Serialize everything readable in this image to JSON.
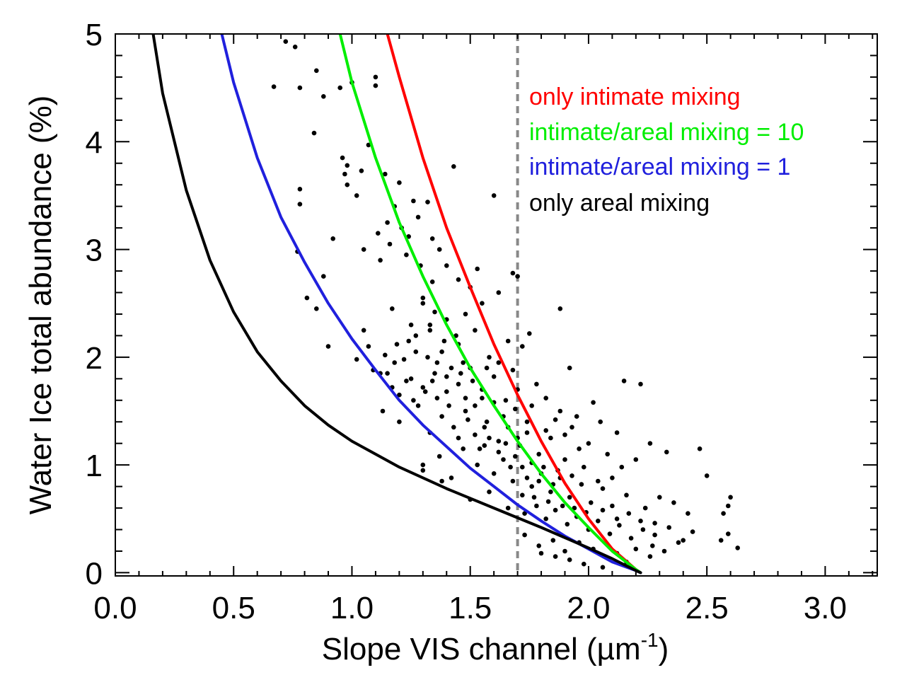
{
  "chart_data": {
    "type": "scatter",
    "title": "",
    "xlabel": "Slope VIS channel (",
    "xlabel_unit": "µm",
    "xlabel_exp": "-1",
    "xlabel_close": ")",
    "ylabel": "Water Ice total abundance (%)",
    "xlim": [
      0.0,
      3.22
    ],
    "ylim": [
      -0.03,
      5.0
    ],
    "x_ticks": [
      {
        "value": 0.0,
        "label": "0.0"
      },
      {
        "value": 0.5,
        "label": "0.5"
      },
      {
        "value": 1.0,
        "label": "1.0"
      },
      {
        "value": 1.5,
        "label": "1.5"
      },
      {
        "value": 2.0,
        "label": "2.0"
      },
      {
        "value": 2.5,
        "label": "2.5"
      },
      {
        "value": 3.0,
        "label": "3.0"
      }
    ],
    "y_ticks": [
      {
        "value": 0,
        "label": "0"
      },
      {
        "value": 1,
        "label": "1"
      },
      {
        "value": 2,
        "label": "2"
      },
      {
        "value": 3,
        "label": "3"
      },
      {
        "value": 4,
        "label": "4"
      },
      {
        "value": 5,
        "label": "5"
      }
    ],
    "reference_line": {
      "x": 1.7,
      "style": "dashed",
      "color": "#888888"
    },
    "legend_position": "top-right",
    "series": [
      {
        "name": "only intimate mixing",
        "type": "line",
        "color": "#ff0000",
        "x": [
          1.15,
          1.2,
          1.3,
          1.4,
          1.5,
          1.6,
          1.7,
          1.8,
          1.9,
          2.0,
          2.1,
          2.2,
          2.22
        ],
        "y": [
          5.0,
          4.6,
          3.85,
          3.2,
          2.65,
          2.12,
          1.65,
          1.22,
          0.83,
          0.5,
          0.22,
          0.03,
          0.0
        ]
      },
      {
        "name": "intimate/areal mixing = 10",
        "type": "line",
        "color": "#00ee00",
        "x": [
          0.95,
          1.0,
          1.1,
          1.2,
          1.3,
          1.4,
          1.5,
          1.6,
          1.7,
          1.8,
          1.9,
          2.0,
          2.1,
          2.2,
          2.22
        ],
        "y": [
          5.0,
          4.55,
          3.85,
          3.25,
          2.75,
          2.3,
          1.9,
          1.55,
          1.22,
          0.92,
          0.65,
          0.42,
          0.2,
          0.03,
          0.0
        ]
      },
      {
        "name": "intimate/areal mixing = 1",
        "type": "line",
        "color": "#2020dd",
        "x": [
          0.45,
          0.5,
          0.6,
          0.7,
          0.8,
          0.9,
          1.0,
          1.1,
          1.2,
          1.3,
          1.4,
          1.5,
          1.6,
          1.7,
          1.8,
          1.9,
          2.0,
          2.1,
          2.2,
          2.22
        ],
        "y": [
          5.0,
          4.55,
          3.85,
          3.3,
          2.88,
          2.5,
          2.17,
          1.88,
          1.6,
          1.37,
          1.17,
          0.97,
          0.8,
          0.63,
          0.48,
          0.34,
          0.22,
          0.1,
          0.02,
          0.0
        ]
      },
      {
        "name": "only areal mixing",
        "type": "line",
        "color": "#000000",
        "x": [
          0.16,
          0.2,
          0.3,
          0.4,
          0.5,
          0.6,
          0.7,
          0.8,
          0.9,
          1.0,
          1.2,
          1.4,
          1.6,
          1.8,
          2.0,
          2.1,
          2.2,
          2.22
        ],
        "y": [
          5.0,
          4.45,
          3.55,
          2.9,
          2.42,
          2.05,
          1.78,
          1.55,
          1.37,
          1.22,
          0.98,
          0.78,
          0.6,
          0.42,
          0.23,
          0.13,
          0.02,
          0.0
        ]
      }
    ],
    "scatter_points": [
      [
        0.72,
        4.93
      ],
      [
        0.76,
        4.88
      ],
      [
        0.67,
        4.51
      ],
      [
        0.78,
        4.5
      ],
      [
        0.85,
        4.66
      ],
      [
        0.88,
        4.42
      ],
      [
        0.84,
        4.08
      ],
      [
        0.95,
        4.5
      ],
      [
        1.1,
        4.6
      ],
      [
        1.1,
        4.52
      ],
      [
        1.0,
        4.55
      ],
      [
        0.78,
        3.56
      ],
      [
        0.78,
        3.42
      ],
      [
        0.96,
        3.85
      ],
      [
        0.97,
        3.7
      ],
      [
        0.98,
        3.78
      ],
      [
        1.04,
        3.73
      ],
      [
        1.07,
        3.97
      ],
      [
        0.98,
        3.6
      ],
      [
        1.02,
        3.5
      ],
      [
        1.14,
        3.7
      ],
      [
        1.2,
        3.62
      ],
      [
        1.43,
        3.77
      ],
      [
        1.6,
        3.5
      ],
      [
        1.32,
        3.44
      ],
      [
        1.26,
        3.45
      ],
      [
        0.77,
        2.98
      ],
      [
        0.92,
        3.1
      ],
      [
        0.88,
        2.75
      ],
      [
        1.05,
        3.0
      ],
      [
        1.12,
        2.9
      ],
      [
        0.85,
        2.45
      ],
      [
        0.81,
        2.55
      ],
      [
        1.05,
        2.25
      ],
      [
        0.9,
        2.1
      ],
      [
        1.17,
        2.45
      ],
      [
        1.3,
        2.55
      ],
      [
        1.53,
        2.82
      ],
      [
        1.62,
        2.6
      ],
      [
        1.68,
        2.78
      ],
      [
        1.7,
        2.75
      ],
      [
        1.88,
        2.45
      ],
      [
        1.02,
        1.98
      ],
      [
        1.07,
        2.1
      ],
      [
        1.12,
        1.85
      ],
      [
        1.18,
        1.95
      ],
      [
        1.24,
        2.15
      ],
      [
        1.33,
        2.25
      ],
      [
        1.38,
        2.05
      ],
      [
        1.45,
        2.12
      ],
      [
        1.52,
        2.25
      ],
      [
        1.58,
        2.0
      ],
      [
        1.66,
        2.15
      ],
      [
        1.72,
        2.1
      ],
      [
        1.75,
        2.22
      ],
      [
        1.92,
        1.9
      ],
      [
        1.78,
        1.75
      ],
      [
        1.2,
        1.65
      ],
      [
        1.25,
        1.8
      ],
      [
        1.3,
        1.72
      ],
      [
        1.35,
        1.85
      ],
      [
        1.4,
        1.68
      ],
      [
        1.45,
        1.75
      ],
      [
        1.5,
        1.9
      ],
      [
        1.55,
        1.7
      ],
      [
        1.6,
        1.82
      ],
      [
        1.65,
        1.6
      ],
      [
        1.7,
        1.7
      ],
      [
        1.76,
        1.55
      ],
      [
        1.82,
        1.62
      ],
      [
        1.88,
        1.5
      ],
      [
        1.95,
        1.45
      ],
      [
        2.02,
        1.58
      ],
      [
        2.05,
        1.4
      ],
      [
        2.12,
        1.3
      ],
      [
        2.15,
        1.78
      ],
      [
        2.22,
        1.75
      ],
      [
        1.13,
        1.5
      ],
      [
        1.2,
        1.4
      ],
      [
        1.28,
        1.55
      ],
      [
        1.33,
        1.3
      ],
      [
        1.38,
        1.45
      ],
      [
        1.43,
        1.35
      ],
      [
        1.48,
        1.5
      ],
      [
        1.52,
        1.28
      ],
      [
        1.57,
        1.4
      ],
      [
        1.62,
        1.22
      ],
      [
        1.66,
        1.35
      ],
      [
        1.71,
        1.18
      ],
      [
        1.74,
        1.3
      ],
      [
        1.79,
        1.1
      ],
      [
        1.84,
        1.25
      ],
      [
        1.9,
        1.05
      ],
      [
        1.96,
        1.15
      ],
      [
        2.0,
        1.2
      ],
      [
        2.08,
        1.1
      ],
      [
        2.14,
        0.98
      ],
      [
        2.2,
        1.05
      ],
      [
        2.26,
        1.2
      ],
      [
        2.33,
        1.12
      ],
      [
        2.47,
        1.15
      ],
      [
        1.3,
        1.0
      ],
      [
        1.3,
        0.95
      ],
      [
        1.37,
        1.08
      ],
      [
        1.42,
        0.88
      ],
      [
        1.47,
        1.15
      ],
      [
        1.53,
        1.0
      ],
      [
        1.56,
        1.18
      ],
      [
        1.6,
        0.92
      ],
      [
        1.64,
        1.05
      ],
      [
        1.68,
        0.85
      ],
      [
        1.72,
        0.98
      ],
      [
        1.76,
        0.8
      ],
      [
        1.8,
        0.92
      ],
      [
        1.84,
        0.75
      ],
      [
        1.88,
        0.88
      ],
      [
        1.92,
        0.7
      ],
      [
        1.97,
        0.82
      ],
      [
        2.01,
        0.65
      ],
      [
        2.06,
        0.78
      ],
      [
        2.1,
        0.62
      ],
      [
        2.16,
        0.72
      ],
      [
        2.24,
        0.6
      ],
      [
        2.3,
        0.7
      ],
      [
        2.36,
        0.65
      ],
      [
        2.42,
        0.55
      ],
      [
        2.5,
        0.9
      ],
      [
        1.38,
        0.85
      ],
      [
        1.5,
        0.68
      ],
      [
        1.58,
        0.75
      ],
      [
        1.66,
        0.6
      ],
      [
        1.73,
        0.55
      ],
      [
        1.78,
        0.62
      ],
      [
        1.82,
        0.5
      ],
      [
        1.86,
        0.58
      ],
      [
        1.91,
        0.45
      ],
      [
        1.95,
        0.52
      ],
      [
        2.0,
        0.4
      ],
      [
        2.04,
        0.48
      ],
      [
        2.09,
        0.36
      ],
      [
        2.13,
        0.44
      ],
      [
        2.18,
        0.32
      ],
      [
        2.23,
        0.4
      ],
      [
        2.28,
        0.35
      ],
      [
        2.34,
        0.42
      ],
      [
        2.4,
        0.3
      ],
      [
        2.44,
        0.38
      ],
      [
        2.56,
        0.3
      ],
      [
        2.57,
        0.55
      ],
      [
        2.6,
        0.7
      ],
      [
        2.59,
        0.62
      ],
      [
        2.59,
        0.36
      ],
      [
        2.63,
        0.23
      ],
      [
        1.73,
        0.35
      ],
      [
        1.79,
        0.25
      ],
      [
        1.85,
        0.3
      ],
      [
        1.9,
        0.2
      ],
      [
        1.96,
        0.28
      ],
      [
        2.02,
        0.22
      ],
      [
        2.08,
        0.26
      ],
      [
        2.12,
        0.18
      ],
      [
        2.2,
        0.22
      ],
      [
        2.27,
        0.25
      ],
      [
        2.32,
        0.2
      ],
      [
        2.38,
        0.28
      ],
      [
        2.06,
        0.05
      ],
      [
        1.98,
        0.08
      ],
      [
        1.92,
        0.12
      ],
      [
        1.86,
        0.15
      ],
      [
        1.8,
        0.18
      ],
      [
        2.16,
        0.1
      ],
      [
        2.26,
        0.15
      ],
      [
        1.64,
        1.45
      ],
      [
        1.69,
        1.52
      ],
      [
        1.6,
        1.58
      ],
      [
        1.55,
        1.62
      ],
      [
        1.74,
        1.4
      ],
      [
        1.82,
        1.32
      ],
      [
        1.86,
        1.42
      ],
      [
        1.9,
        1.28
      ],
      [
        1.93,
        1.35
      ],
      [
        1.47,
        1.95
      ],
      [
        1.42,
        1.9
      ],
      [
        1.36,
        1.95
      ],
      [
        1.32,
        2.0
      ],
      [
        1.27,
        2.05
      ],
      [
        1.22,
        1.98
      ],
      [
        1.44,
        2.2
      ],
      [
        1.4,
        2.35
      ],
      [
        1.35,
        2.42
      ],
      [
        1.3,
        2.5
      ],
      [
        1.25,
        2.3
      ],
      [
        1.48,
        2.4
      ],
      [
        1.55,
        2.5
      ],
      [
        1.15,
        1.85
      ],
      [
        1.17,
        1.72
      ],
      [
        1.23,
        1.78
      ],
      [
        1.48,
        1.62
      ],
      [
        1.52,
        1.55
      ],
      [
        1.7,
        1.25
      ],
      [
        1.76,
        1.02
      ],
      [
        1.81,
        0.98
      ],
      [
        1.87,
        0.95
      ],
      [
        1.93,
        0.9
      ],
      [
        1.98,
        0.98
      ],
      [
        2.04,
        0.85
      ],
      [
        2.1,
        0.88
      ],
      [
        1.62,
        1.12
      ],
      [
        1.58,
        1.25
      ],
      [
        1.54,
        1.15
      ],
      [
        1.45,
        1.25
      ],
      [
        1.67,
        0.98
      ],
      [
        1.72,
        0.72
      ],
      [
        1.77,
        0.7
      ],
      [
        1.83,
        0.66
      ],
      [
        1.89,
        0.62
      ],
      [
        1.94,
        0.6
      ],
      [
        1.99,
        0.56
      ],
      [
        2.06,
        0.58
      ],
      [
        2.12,
        0.5
      ],
      [
        2.17,
        0.55
      ],
      [
        2.22,
        0.48
      ],
      [
        2.28,
        0.46
      ],
      [
        1.74,
        0.88
      ],
      [
        1.79,
        0.85
      ],
      [
        1.85,
        0.82
      ],
      [
        1.69,
        1.08
      ],
      [
        1.65,
        1.2
      ],
      [
        1.56,
        1.35
      ],
      [
        1.49,
        1.42
      ],
      [
        1.41,
        1.55
      ],
      [
        1.36,
        1.62
      ],
      [
        1.31,
        1.68
      ],
      [
        1.26,
        1.6
      ],
      [
        1.34,
        1.78
      ],
      [
        1.4,
        1.82
      ],
      [
        1.46,
        1.85
      ],
      [
        1.51,
        1.78
      ],
      [
        1.57,
        1.9
      ],
      [
        1.62,
        1.95
      ],
      [
        1.68,
        1.88
      ],
      [
        1.14,
        2.02
      ],
      [
        1.09,
        1.88
      ],
      [
        1.19,
        2.12
      ],
      [
        1.27,
        2.2
      ],
      [
        1.33,
        2.3
      ],
      [
        1.39,
        2.15
      ],
      [
        1.21,
        3.2
      ],
      [
        1.24,
        3.12
      ],
      [
        1.28,
        3.3
      ],
      [
        1.18,
        3.4
      ],
      [
        1.15,
        3.25
      ],
      [
        1.34,
        3.1
      ],
      [
        1.37,
        3.0
      ],
      [
        1.4,
        2.85
      ],
      [
        1.45,
        2.72
      ],
      [
        1.5,
        2.65
      ],
      [
        1.34,
        2.7
      ],
      [
        1.29,
        2.85
      ],
      [
        1.23,
        2.95
      ],
      [
        1.16,
        3.05
      ],
      [
        1.11,
        3.15
      ]
    ],
    "scatter_color": "#000000"
  },
  "legend": [
    {
      "label": "only intimate mixing",
      "color": "#ff0000"
    },
    {
      "label": "intimate/areal mixing = 10",
      "color": "#00ee00"
    },
    {
      "label": "intimate/areal mixing = 1",
      "color": "#2020dd"
    },
    {
      "label": "only areal mixing",
      "color": "#000000"
    }
  ]
}
